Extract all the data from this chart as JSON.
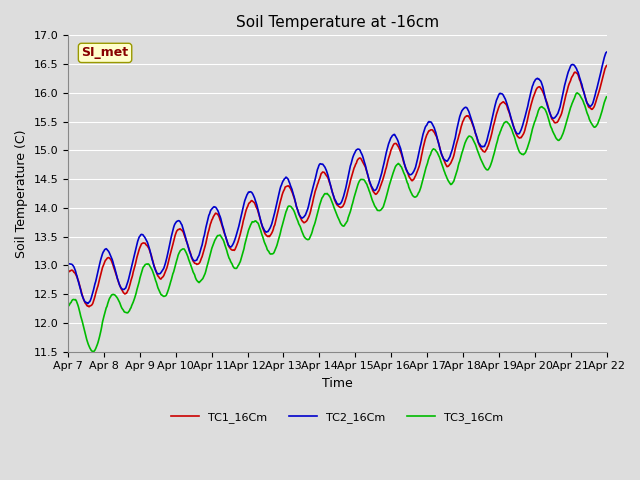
{
  "title": "Soil Temperature at -16cm",
  "ylabel": "Soil Temperature (C)",
  "xlabel": "Time",
  "legend_label": "SI_met",
  "series_labels": [
    "TC1_16Cm",
    "TC2_16Cm",
    "TC3_16Cm"
  ],
  "series_colors": [
    "#cc0000",
    "#0000cc",
    "#00bb00"
  ],
  "ylim": [
    11.5,
    17.0
  ],
  "yticks": [
    11.5,
    12.0,
    12.5,
    13.0,
    13.5,
    14.0,
    14.5,
    15.0,
    15.5,
    16.0,
    16.5,
    17.0
  ],
  "xtick_labels": [
    "Apr 7",
    "Apr 8",
    "Apr 9",
    "Apr 10",
    "Apr 11",
    "Apr 12",
    "Apr 13",
    "Apr 14",
    "Apr 15",
    "Apr 16",
    "Apr 17",
    "Apr 18",
    "Apr 19",
    "Apr 20",
    "Apr 21",
    "Apr 22"
  ],
  "background_color": "#dddddd",
  "plot_bg_color": "#dddddd",
  "grid_color": "#ffffff",
  "linewidth": 1.2,
  "title_fontsize": 11,
  "label_fontsize": 9,
  "tick_fontsize": 8,
  "legend_box_facecolor": "#ffffcc",
  "legend_box_edgecolor": "#999900",
  "legend_text_color": "#880000"
}
